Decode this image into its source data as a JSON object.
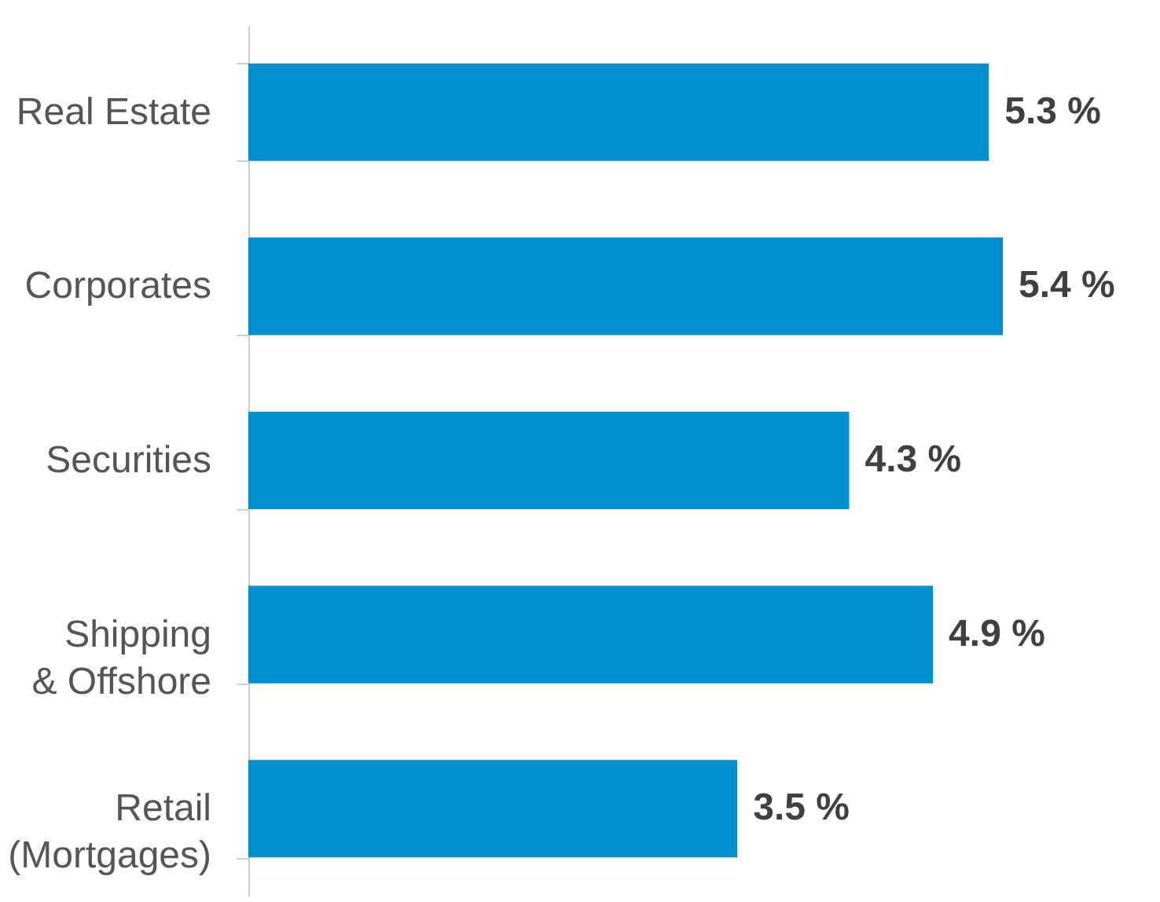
{
  "chart_data": {
    "type": "bar",
    "orientation": "horizontal",
    "categories": [
      "Real Estate",
      "Corporates",
      "Securities",
      "Shipping\n& Offshore",
      "Retail\n(Mortgages)"
    ],
    "values": [
      5.3,
      5.4,
      4.3,
      4.9,
      3.5
    ],
    "value_labels": [
      "5.3 %",
      "5.4 %",
      "4.3 %",
      "4.9 %",
      "3.5 %"
    ],
    "color": "#0090d0",
    "grid": false
  }
}
